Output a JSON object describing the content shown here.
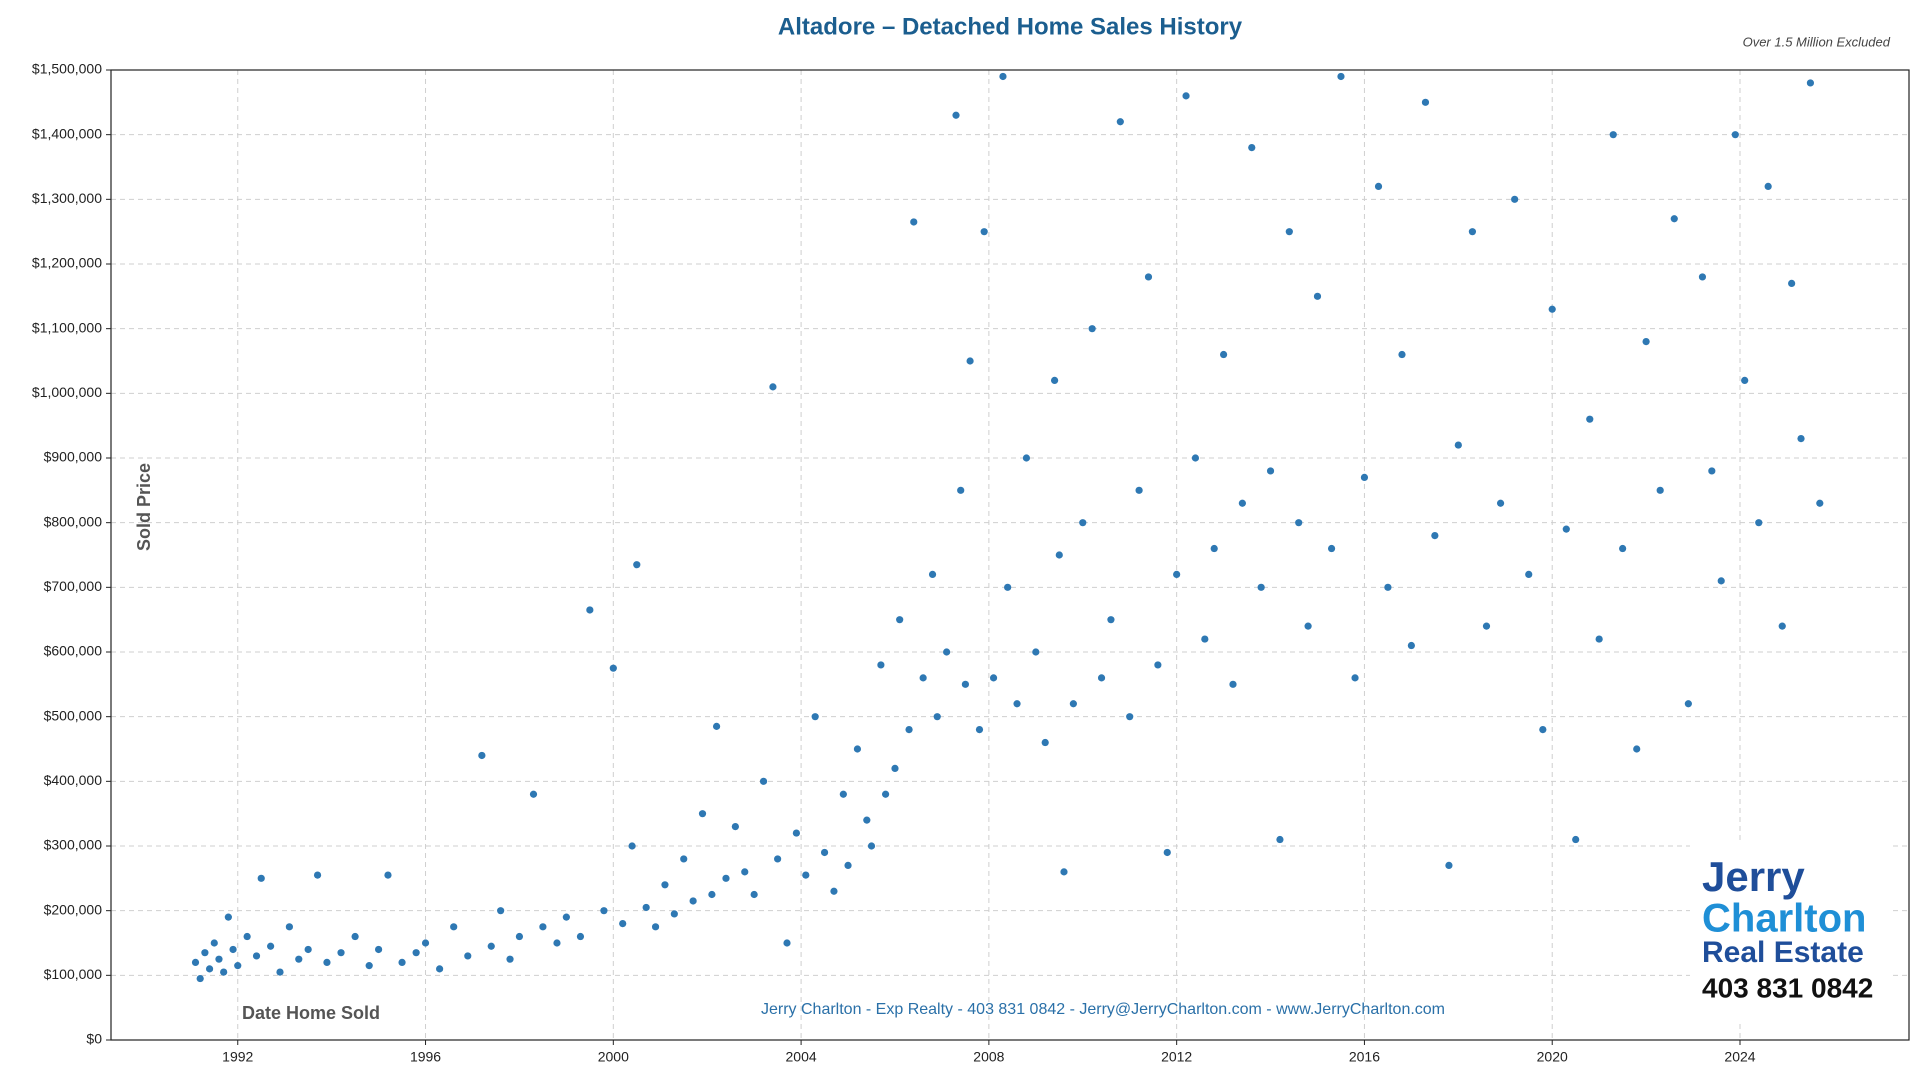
{
  "chart_data": {
    "type": "scatter",
    "title": "Altadore – Detached Home Sales History",
    "subtitle": "Over 1.5 Million Excluded",
    "y_label": "Sold Price",
    "x_label": "Date Home Sold",
    "footer": "Jerry Charlton - Exp Realty - 403 831 0842 - Jerry@JerryCharlton.com - www.JerryCharlton.com",
    "logo": {
      "line1": "Jerry",
      "line2": "Charlton",
      "line3": "Real Estate",
      "phone": "403 831 0842"
    },
    "color": "#2e78b3",
    "grid": true,
    "xlim": [
      1989.3,
      2027.6
    ],
    "ylim": [
      0,
      1500000
    ],
    "xticks": [
      1992,
      1996,
      2000,
      2004,
      2008,
      2012,
      2016,
      2020,
      2024
    ],
    "yticks": [
      {
        "value": 0,
        "label": "$0"
      },
      {
        "value": 100000,
        "label": "$100,000"
      },
      {
        "value": 200000,
        "label": "$200,000"
      },
      {
        "value": 300000,
        "label": "$300,000"
      },
      {
        "value": 400000,
        "label": "$400,000"
      },
      {
        "value": 500000,
        "label": "$500,000"
      },
      {
        "value": 600000,
        "label": "$600,000"
      },
      {
        "value": 700000,
        "label": "$700,000"
      },
      {
        "value": 800000,
        "label": "$800,000"
      },
      {
        "value": 900000,
        "label": "$900,000"
      },
      {
        "value": 1000000,
        "label": "$1,000,000"
      },
      {
        "value": 1100000,
        "label": "$1,100,000"
      },
      {
        "value": 1200000,
        "label": "$1,200,000"
      },
      {
        "value": 1300000,
        "label": "$1,300,000"
      },
      {
        "value": 1400000,
        "label": "$1,400,000"
      },
      {
        "value": 1500000,
        "label": "$1,500,000"
      }
    ],
    "x": [
      1991.1,
      1991.2,
      1991.3,
      1991.4,
      1991.5,
      1991.6,
      1991.7,
      1991.8,
      1991.9,
      1992.0,
      1992.2,
      1992.4,
      1992.5,
      1992.7,
      1992.9,
      1993.1,
      1993.3,
      1993.5,
      1993.7,
      1993.9,
      1994.2,
      1994.5,
      1994.8,
      1995.0,
      1995.2,
      1995.5,
      1995.8,
      1996.0,
      1996.3,
      1996.6,
      1996.9,
      1997.2,
      1997.4,
      1997.6,
      1997.8,
      1998.0,
      1998.3,
      1998.5,
      1998.8,
      1999.0,
      1999.3,
      1999.5,
      1999.8,
      2000.0,
      2000.2,
      2000.4,
      2000.5,
      2000.7,
      2000.9,
      2001.1,
      2001.3,
      2001.5,
      2001.7,
      2001.9,
      2002.1,
      2002.2,
      2002.4,
      2002.6,
      2002.8,
      2003.0,
      2003.2,
      2003.4,
      2003.5,
      2003.7,
      2003.9,
      2004.1,
      2004.3,
      2004.5,
      2004.7,
      2004.9,
      2005.0,
      2005.2,
      2005.4,
      2005.5,
      2005.7,
      2005.8,
      2006.0,
      2006.1,
      2006.3,
      2006.4,
      2006.6,
      2006.8,
      2006.9,
      2007.1,
      2007.3,
      2007.4,
      2007.5,
      2007.6,
      2007.8,
      2007.9,
      2008.1,
      2008.3,
      2008.4,
      2008.6,
      2008.8,
      2009.0,
      2009.2,
      2009.4,
      2009.5,
      2009.6,
      2009.8,
      2010.0,
      2010.2,
      2010.4,
      2010.6,
      2010.8,
      2011.0,
      2011.2,
      2011.4,
      2011.6,
      2011.8,
      2012.0,
      2012.2,
      2012.4,
      2012.6,
      2012.8,
      2013.0,
      2013.2,
      2013.4,
      2013.6,
      2013.8,
      2014.0,
      2014.2,
      2014.4,
      2014.6,
      2014.8,
      2015.0,
      2015.3,
      2015.5,
      2015.8,
      2016.0,
      2016.3,
      2016.5,
      2016.8,
      2017.0,
      2017.3,
      2017.5,
      2017.8,
      2018.0,
      2018.3,
      2018.6,
      2018.9,
      2019.2,
      2019.5,
      2019.8,
      2020.0,
      2020.3,
      2020.5,
      2020.8,
      2021.0,
      2021.3,
      2021.5,
      2021.8,
      2022.0,
      2022.3,
      2022.6,
      2022.9,
      2023.2,
      2023.4,
      2023.6,
      2023.9,
      2024.1,
      2024.4,
      2024.6,
      2024.9,
      2025.1,
      2025.3,
      2025.5,
      2025.7
    ],
    "values": [
      120000,
      95000,
      135000,
      110000,
      150000,
      125000,
      105000,
      190000,
      140000,
      115000,
      160000,
      130000,
      250000,
      145000,
      105000,
      175000,
      125000,
      140000,
      255000,
      120000,
      135000,
      160000,
      115000,
      140000,
      255000,
      120000,
      135000,
      150000,
      110000,
      175000,
      130000,
      440000,
      145000,
      200000,
      125000,
      160000,
      380000,
      175000,
      150000,
      190000,
      160000,
      665000,
      200000,
      575000,
      180000,
      300000,
      735000,
      205000,
      175000,
      240000,
      195000,
      280000,
      215000,
      350000,
      225000,
      485000,
      250000,
      330000,
      260000,
      225000,
      400000,
      1010000,
      280000,
      150000,
      320000,
      255000,
      500000,
      290000,
      230000,
      380000,
      270000,
      450000,
      340000,
      300000,
      580000,
      380000,
      420000,
      650000,
      480000,
      1265000,
      560000,
      720000,
      500000,
      600000,
      1430000,
      850000,
      550000,
      1050000,
      480000,
      1250000,
      560000,
      1490000,
      700000,
      520000,
      900000,
      600000,
      460000,
      1020000,
      750000,
      260000,
      520000,
      800000,
      1100000,
      560000,
      650000,
      1420000,
      500000,
      850000,
      1180000,
      580000,
      290000,
      720000,
      1460000,
      900000,
      620000,
      760000,
      1060000,
      550000,
      830000,
      1380000,
      700000,
      880000,
      310000,
      1250000,
      800000,
      640000,
      1150000,
      760000,
      1490000,
      560000,
      870000,
      1320000,
      700000,
      1060000,
      610000,
      1450000,
      780000,
      270000,
      920000,
      1250000,
      640000,
      830000,
      1300000,
      720000,
      480000,
      1130000,
      790000,
      310000,
      960000,
      620000,
      1400000,
      760000,
      450000,
      1080000,
      850000,
      1270000,
      520000,
      1180000,
      880000,
      710000,
      1400000,
      1020000,
      800000,
      1320000,
      640000,
      1170000,
      930000,
      1480000,
      830000
    ]
  }
}
